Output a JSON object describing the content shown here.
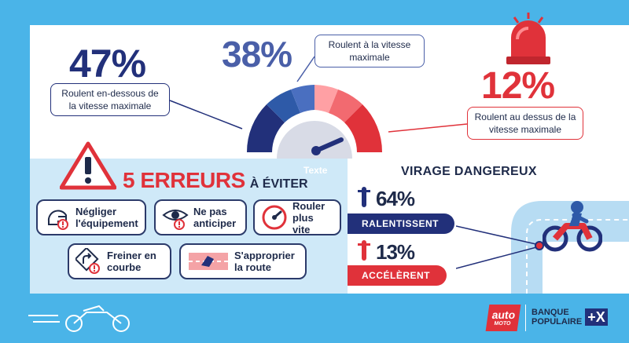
{
  "gauge": {
    "pct_below": "47%",
    "label_below": "Roulent en-dessous de la vitesse maximale",
    "pct_at": "38%",
    "label_at": "Roulent à la vitesse maximale",
    "pct_above": "12%",
    "label_above": "Roulent au dessus de la vitesse maximale"
  },
  "errors": {
    "title_number": "5 ERREURS",
    "title_rest": "À ÉVITER",
    "placeholder_text": "Texte",
    "items": [
      {
        "label": "Négliger l'équipement",
        "icon": "helmet-icon"
      },
      {
        "label": "Ne pas anticiper",
        "icon": "eye-icon"
      },
      {
        "label": "Rouler plus vite",
        "icon": "speedometer-icon"
      },
      {
        "label": "Freiner en courbe",
        "icon": "curve-sign-icon"
      },
      {
        "label": "S'approprier la route",
        "icon": "road-icon"
      }
    ]
  },
  "turn": {
    "title": "VIRAGE DANGEREUX",
    "pct_slow": "64%",
    "label_slow": "RALENTISSENT",
    "pct_fast": "13%",
    "label_fast": "ACCÉLÈRENT"
  },
  "brands": {
    "auto_moto_top": "auto",
    "auto_moto_bottom": "MOTO",
    "bank_line1": "BANQUE",
    "bank_line2": "POPULAIRE",
    "bank_mark": "+X"
  },
  "colors": {
    "navy": "#22307a",
    "blue": "#2e5aa8",
    "red": "#e0323a",
    "sky": "#4ab4e8"
  }
}
